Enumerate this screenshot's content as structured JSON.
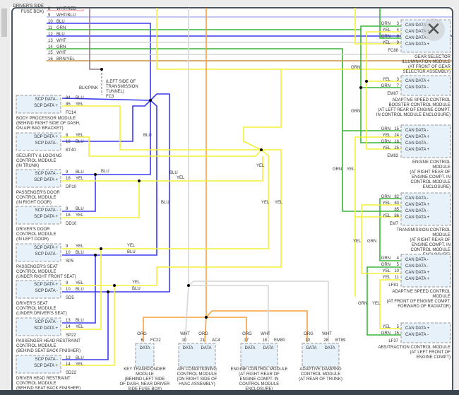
{
  "close_button": {
    "icon": "close-icon",
    "glyph": "✕"
  },
  "colors": {
    "BLU": "#3a3af0",
    "YEL": "#f4f03a",
    "GRN": "#3cb43c",
    "ORG": "#f7a040",
    "WHT": "#d6d6d6",
    "WHT/RED": "#f4a8b4",
    "WHT/BLU": "#aab4f4",
    "BRN/YEL": "#c8964a",
    "BLK/PINK": "#9a7a88"
  },
  "fuse_box": {
    "name_lines": [
      "DRIVER'S SIDE",
      "FUSE BOX)"
    ],
    "pins": [
      {
        "pin": "8",
        "wire": "WHT/RED"
      },
      {
        "pin": "9",
        "wire": "WHT/BLU"
      },
      {
        "pin": "10",
        "wire": "BLU"
      },
      {
        "pin": "11",
        "wire": "GRN"
      },
      {
        "pin": "12",
        "wire": "BLU"
      },
      {
        "pin": "13",
        "wire": "WHT"
      },
      {
        "pin": "14",
        "wire": "GRN"
      },
      {
        "pin": "15",
        "wire": "WHT"
      },
      {
        "pin": "16",
        "wire": "BRN/YEL"
      }
    ]
  },
  "splice_fc3": {
    "wire": "BLK/PINK",
    "lines": [
      "(LEFT SIDE OF",
      "TRANSMISSION",
      "TUNNEL)"
    ],
    "id": "FC3"
  },
  "left_modules": [
    {
      "pins": [
        {
          "label": "SCP DATA -",
          "pin": "84",
          "wire": "BLU"
        },
        {
          "label": "SCP DATA +",
          "pin": "85",
          "wire": "YEL"
        }
      ],
      "connector": "FC14",
      "name_lines": [
        "BODY PROCESSOR MODULE",
        "(BEHIND RIGHT SIDE OF DASH,",
        "ON AIR BAG BRACKET)"
      ]
    },
    {
      "pins": [
        {
          "label": "SCP DATA +",
          "pin": "8",
          "wire": "YEL"
        },
        {
          "label": "SCP DATA -",
          "pin": "18",
          "wire": "BLU"
        }
      ],
      "connector": "BT40",
      "name_lines": [
        "SECURITY & LOCKING",
        "CONTROL MODULE",
        "(IN TRUNK)"
      ]
    },
    {
      "pins": [
        {
          "label": "SCP DATA -",
          "pin": "9",
          "wire": "BLU"
        },
        {
          "label": "SCP DATA +",
          "pin": "18",
          "wire": "YEL"
        }
      ],
      "connector": "DP10",
      "name_lines": [
        "PASSENGER'S DOOR",
        "CONTROL MODULE",
        "(IN RIGHT DOOR)"
      ]
    },
    {
      "pins": [
        {
          "label": "SCP DATA -",
          "pin": "9",
          "wire": "BLU"
        },
        {
          "label": "SCP DATA +",
          "pin": "18",
          "wire": "YEL"
        }
      ],
      "connector": "DD10",
      "name_lines": [
        "DRIVER'S DOOR",
        "CONTROL MODULE",
        "(IN LEFT DOOR)"
      ]
    },
    {
      "pins": [
        {
          "label": "SCP DATA +",
          "pin": "9",
          "wire": "YEL"
        },
        {
          "label": "SCP DATA -",
          "pin": "10",
          "wire": "BLU"
        }
      ],
      "connector": "SP5",
      "name_lines": [
        "PASSENGER'S SEAT",
        "CONTROL MODULE",
        "(UNDER RIGHT FRONT SEAT)"
      ]
    },
    {
      "pins": [
        {
          "label": "SCP DATA +",
          "pin": "9",
          "wire": "YEL"
        },
        {
          "label": "SCP DATA -",
          "pin": "10",
          "wire": "BLU"
        }
      ],
      "connector": "SD5",
      "name_lines": [
        "DRIVER'S SEAT",
        "CONTROL MODULE",
        "(UNDER DRIVER'S SEAT)"
      ]
    },
    {
      "pins": [
        {
          "label": "SCP DATA -",
          "pin": "13",
          "wire": "BLU"
        },
        {
          "label": "SCP DATA +",
          "pin": "14",
          "wire": "YEL"
        }
      ],
      "connector": "SP22",
      "name_lines": [
        "PASSENGER HEAD RESTRAINT",
        "CONTROL MODULE",
        "(BEHIND SEAT BACK FINISHER)"
      ]
    },
    {
      "pins": [
        {
          "label": "SCP DATA -",
          "pin": "13",
          "wire": "BLU"
        },
        {
          "label": "SCP DATA +",
          "pin": "14",
          "wire": "YEL"
        }
      ],
      "connector": "SD22",
      "name_lines": [
        "DRIVER HEAD RESTRAINT",
        "CONTROL MODULE",
        "(BEHIND SEAT BACK FINISHER)"
      ]
    }
  ],
  "right_modules": [
    {
      "pins": [
        {
          "label": "CAN DATA -",
          "pin": "3",
          "wire": "GRN"
        },
        {
          "label": "CAN DATA +",
          "pin": "4",
          "wire": "YEL"
        },
        {
          "label": "CAN DATA -",
          "pin": "8",
          "wire": "GRN"
        },
        {
          "label": "CAN DATA +",
          "pin": "9",
          "wire": "YEL"
        }
      ],
      "connector": "FC88",
      "name_lines": [
        "GEAR SELECTOR",
        "ILLUMINATION MODULE",
        "(AT FRONT OF GEAR",
        "SELECTOR ASSEMBLY)"
      ]
    },
    {
      "pins": [
        {
          "label": "CAN DATA +",
          "pin": "3",
          "wire": "YEL"
        },
        {
          "label": "CAN DATA -",
          "pin": "7",
          "wire": "GRN"
        }
      ],
      "connector": "EM87",
      "name_lines": [
        "ADAPTIVE SPEED CONTROL",
        "BOOSTER CONTROL MODULE",
        "(AT LEFT REAR OF ENGINE COMPT.",
        "IN CONTROL MODULE ENCLOSURE)"
      ]
    },
    {
      "pins": [
        {
          "label": "CAN DATA -",
          "pin": "15",
          "wire": "GRN"
        },
        {
          "label": "CAN DATA +",
          "pin": "24",
          "wire": "YEL"
        },
        {
          "label": "CAN DATA -",
          "pin": "16",
          "wire": "GRN"
        },
        {
          "label": "CAN DATA +",
          "pin": "25",
          "wire": "YEL"
        }
      ],
      "connector": "EM83",
      "name_lines": [
        "ENGINE CONTROL",
        "MODULE",
        "(AT RIGHT REAR OF",
        "ENGINE COMPT. IN",
        "CONTROL MODULE",
        "ENCLOSURE)"
      ]
    },
    {
      "pins": [
        {
          "label": "CAN DATA -",
          "pin": "82",
          "wire": "GRN"
        },
        {
          "label": "CAN DATA +",
          "pin": "83",
          "wire": "YEL"
        },
        {
          "label": "CAN DATA -",
          "pin": "85",
          "wire": ""
        },
        {
          "label": "CAN DATA +",
          "pin": "86",
          "wire": "YEL"
        }
      ],
      "connector": "EM7",
      "name_lines": [
        "TRANSMISSION CONTROL",
        "MODULE",
        "(AT RIGHT REAR OF",
        "ENGINE COMPT. IN",
        "CONTROL MODULE",
        "ENCLOSURE)"
      ]
    },
    {
      "pins": [
        {
          "label": "CAN DATA -",
          "pin": "4",
          "wire": "GRN"
        },
        {
          "label": "CAN DATA -",
          "pin": "5",
          "wire": "GRN"
        },
        {
          "label": "CAN DATA +",
          "pin": "10",
          "wire": "YEL"
        },
        {
          "label": "CAN DATA +",
          "pin": "11",
          "wire": "YEL"
        }
      ],
      "connector": "LF81",
      "name_lines": [
        "ADAPTIVE SPEED CONTROL",
        "MODULE",
        "(AT FRONT OF ENGINE COMPT.",
        "FORWARD OF RADIATOR)"
      ]
    },
    {
      "pins": [
        {
          "label": "CAN DATA +",
          "pin": "5",
          "wire": "YEL"
        },
        {
          "label": "CAN DATA -",
          "pin": "15",
          "wire": "GRN"
        }
      ],
      "connector": "LF37",
      "name_lines": [
        "ABS/TRACTION CONTROL MODULE",
        "(AT LEFT FRONT OF",
        "ENGINE COMPT)"
      ]
    }
  ],
  "bottom_modules": [
    {
      "pins": [
        {
          "label": "DATA",
          "pin": "6",
          "wire": "ORG"
        }
      ],
      "connector": "FC22",
      "name_lines": [
        "KEY TRANSPONDER",
        "MODULE",
        "(BEHIND LEFT SIDE",
        "OF DASH, NEAR DRIVER",
        "SIDE FUSE BOX)"
      ]
    },
    {
      "pins": [
        {
          "label": "DATA",
          "pin": "10",
          "wire": "WHT"
        },
        {
          "label": "DATA",
          "pin": "21",
          "wire": "ORG"
        }
      ],
      "connector": "AC4",
      "name_lines": [
        "AIR CONDITIONING",
        "CONTROL MODULE",
        "(ON RIGHT SIDE OF",
        "HVAC ASSEMBLY)"
      ]
    },
    {
      "pins": [
        {
          "label": "DATA",
          "pin": "17",
          "wire": "ORG"
        },
        {
          "label": "DATA",
          "pin": "18",
          "wire": "WHT"
        }
      ],
      "connector": "EM80",
      "name_lines": [
        "ENGINE CONTROL MODULE",
        "(AT RIGHT REAR OF",
        "ENGINE COMPT. IN",
        "CONTROL MODULE",
        "ENCLOSURE)"
      ]
    },
    {
      "pins": [
        {
          "label": "DATA",
          "pin": "10",
          "wire": "ORG"
        },
        {
          "label": "DATA",
          "pin": "28",
          "wire": "WHT"
        }
      ],
      "connector": "BT89",
      "name_lines": [
        "ADAPTIVE DAMPING",
        "CONTROL MODULE",
        "(AT REAR OF TRUNK)"
      ]
    }
  ],
  "wire_labels": [
    "BLU",
    "BLU",
    "BLU",
    "YEL",
    "YEL",
    "YEL",
    "YEL",
    "YEL",
    "BLU",
    "YEL",
    "BLU",
    "GRN",
    "GRN",
    "GRN",
    "YEL",
    "YEL",
    "GRN",
    "GRN",
    "YEL",
    "BLU"
  ]
}
